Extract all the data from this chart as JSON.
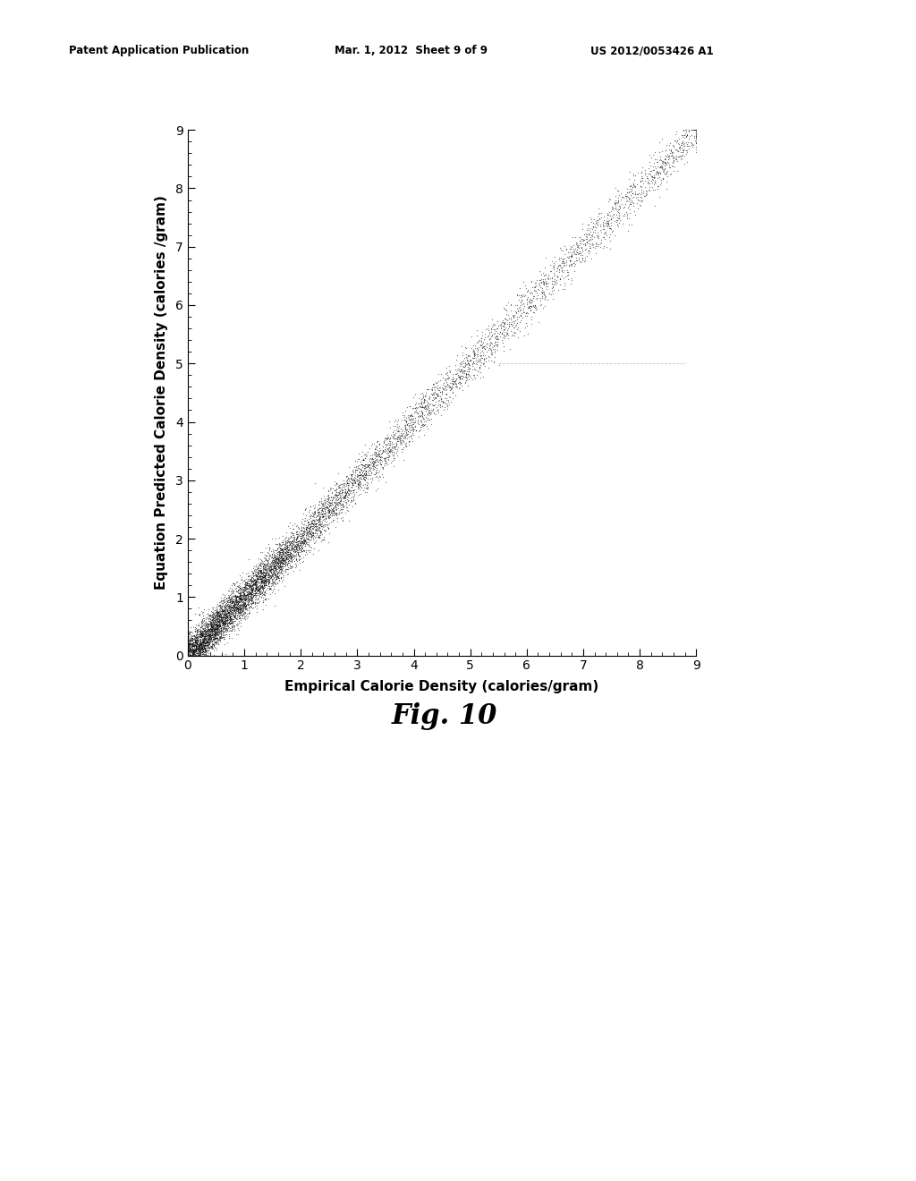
{
  "title": "Fig. 10",
  "xlabel": "Empirical Calorie Density (calories/gram)",
  "ylabel": "Equation Predicted Calorie Density (calories /gram)",
  "xlim": [
    0,
    9
  ],
  "ylim": [
    0,
    9
  ],
  "xticks": [
    0,
    1,
    2,
    3,
    4,
    5,
    6,
    7,
    8,
    9
  ],
  "yticks": [
    0,
    1,
    2,
    3,
    4,
    5,
    6,
    7,
    8,
    9
  ],
  "scatter_color": "#000000",
  "background_color": "#ffffff",
  "header_left": "Patent Application Publication",
  "header_center": "Mar. 1, 2012  Sheet 9 of 9",
  "header_right": "US 2012/0053426 A1",
  "n_points": 8000,
  "seed": 42,
  "noise_scale": 0.12,
  "point_size": 0.8,
  "alpha": 0.55,
  "dashed_line_y": 5.0,
  "dashed_line_x_start": 5.5,
  "dashed_line_x_end": 8.8
}
